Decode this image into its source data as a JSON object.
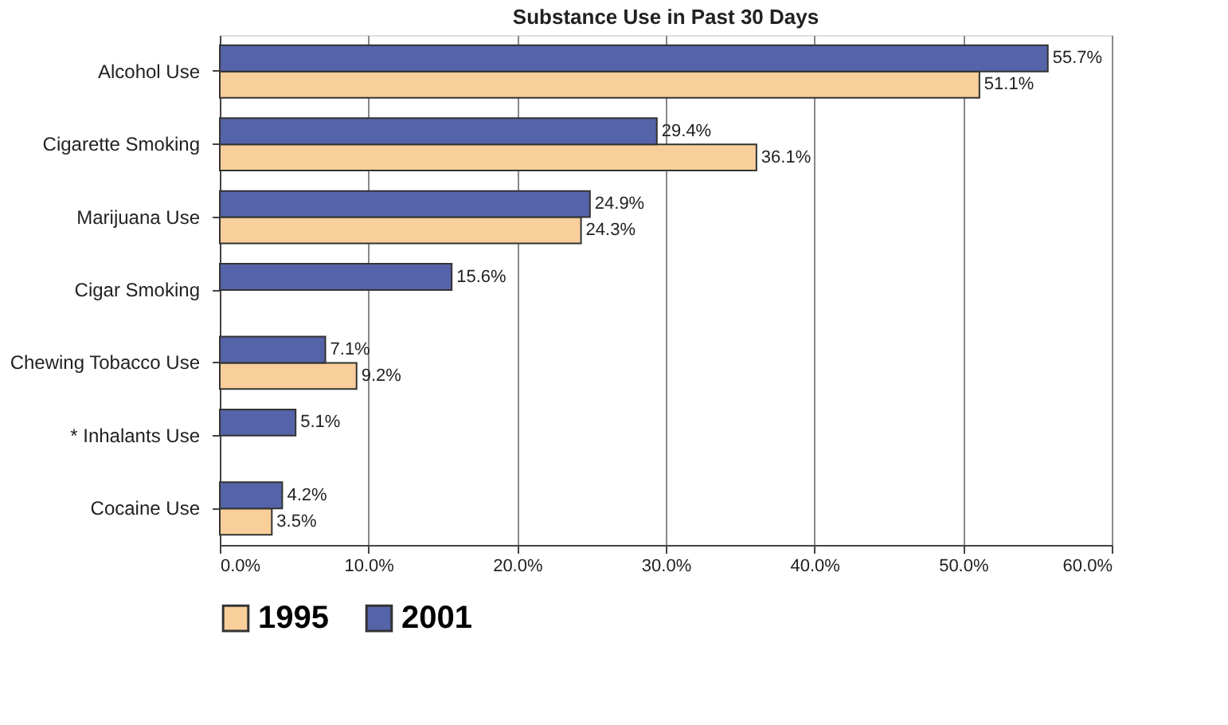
{
  "chart_data": {
    "type": "bar",
    "orientation": "horizontal",
    "title": "Substance Use in Past 30 Days",
    "categories": [
      "Alcohol Use",
      "Cigarette Smoking",
      "Marijuana Use",
      "Cigar Smoking",
      "Chewing Tobacco Use",
      "* Inhalants Use",
      "Cocaine Use"
    ],
    "series": [
      {
        "name": "1995",
        "color": "#f8cf9a",
        "values": [
          51.1,
          36.1,
          24.3,
          null,
          9.2,
          null,
          3.5
        ],
        "value_labels": [
          "51.1%",
          "36.1%",
          "24.3%",
          null,
          "9.2%",
          null,
          "3.5%"
        ]
      },
      {
        "name": "2001",
        "color": "#5563a8",
        "values": [
          55.7,
          29.4,
          24.9,
          15.6,
          7.1,
          5.1,
          4.2
        ],
        "value_labels": [
          "55.7%",
          "29.4%",
          "24.9%",
          "15.6%",
          "7.1%",
          "5.1%",
          "4.2%"
        ]
      }
    ],
    "xlim": [
      0,
      60
    ],
    "xticks": [
      {
        "value": 0,
        "label": "0.0%"
      },
      {
        "value": 10,
        "label": "10.0%"
      },
      {
        "value": 20,
        "label": "20.0%"
      },
      {
        "value": 30,
        "label": "30.0%"
      },
      {
        "value": 40,
        "label": "40.0%"
      },
      {
        "value": 50,
        "label": "50.0%"
      },
      {
        "value": 60,
        "label": "60.0%"
      }
    ],
    "grid": "x",
    "legend": "bottom"
  }
}
